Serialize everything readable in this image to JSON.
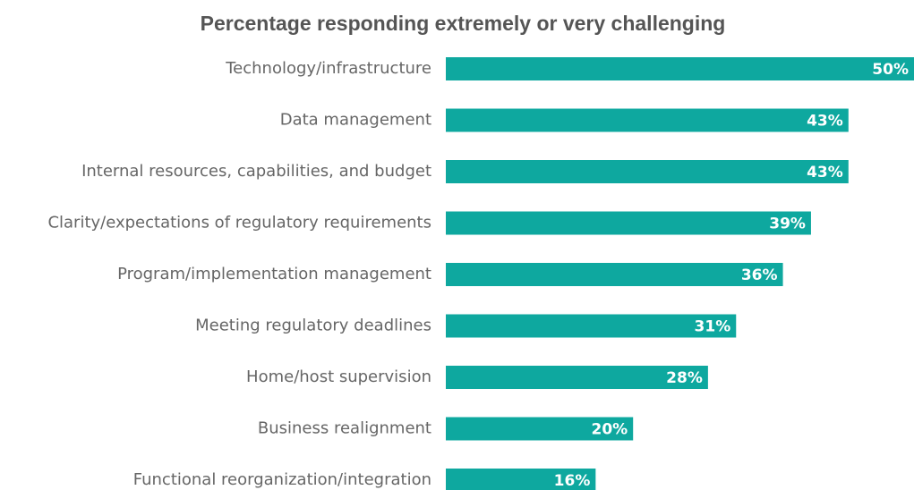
{
  "chart_data": {
    "type": "bar",
    "orientation": "horizontal",
    "title": "Percentage responding extremely or very challenging",
    "categories": [
      "Technology/infrastructure",
      "Data management",
      "Internal resources, capabilities, and budget",
      "Clarity/expectations of regulatory requirements",
      "Program/implementation management",
      "Meeting regulatory deadlines",
      "Home/host supervision",
      "Business realignment",
      "Functional reorganization/integration"
    ],
    "values": [
      50,
      43,
      43,
      39,
      36,
      31,
      28,
      20,
      16
    ],
    "value_labels": [
      "50%",
      "43%",
      "43%",
      "39%",
      "36%",
      "31%",
      "28%",
      "20%",
      "16%"
    ],
    "color": "#0ea89f"
  }
}
